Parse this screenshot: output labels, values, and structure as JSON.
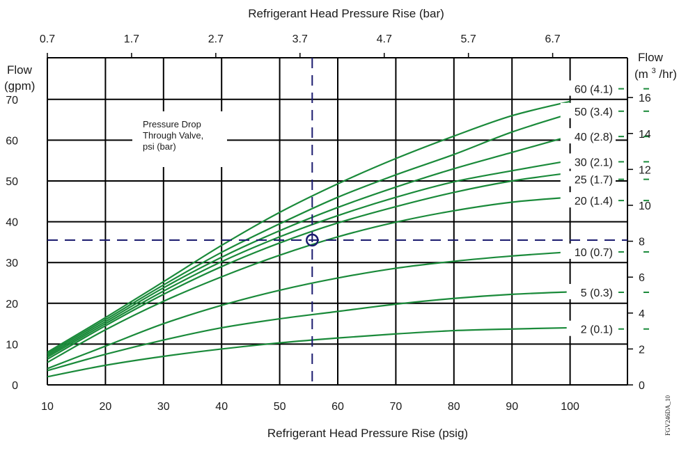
{
  "colors": {
    "curve": "#1a8a3a",
    "grid": "#000000",
    "marker": "#1a1a6e",
    "text": "#1a1a1a"
  },
  "chart_data": {
    "type": "line",
    "title": "",
    "xlabel": "Refrigerant Head Pressure Rise (psig)",
    "xlabel_top": "Refrigerant Head Pressure Rise (bar)",
    "ylabel_left": [
      "Flow",
      "(gpm)"
    ],
    "ylabel_right": [
      "Flow",
      "(m",
      "3",
      "/hr)"
    ],
    "xlim": [
      10,
      100
    ],
    "ylim": [
      0,
      72
    ],
    "x_ticks": [
      10,
      20,
      30,
      40,
      50,
      60,
      70,
      80,
      90,
      100
    ],
    "x_ticks_top": [
      "0.7",
      "1.7",
      "2.7",
      "3.7",
      "4.7",
      "5.7",
      "6.7"
    ],
    "x_ticks_top_pos": [
      10,
      24.5,
      39,
      53.5,
      68,
      82.5,
      97
    ],
    "y_ticks": [
      0,
      10,
      20,
      30,
      40,
      50,
      60,
      70
    ],
    "y_ticks_right": [
      0,
      2,
      4,
      6,
      8,
      10,
      12,
      14,
      16
    ],
    "gpm_per_m3hr": 4.403,
    "grid": true,
    "annotation": [
      "Pressure Drop",
      "Through Valve,",
      "psi (bar)"
    ],
    "figure_id": "FGV246DA_10",
    "example": {
      "x": 55.6,
      "y": 35.5
    },
    "series": [
      {
        "name": "60 (4.1)",
        "x": [
          10,
          20,
          30,
          40,
          50,
          60,
          70,
          80,
          90,
          100
        ],
        "y": [
          8,
          16.5,
          25.3,
          34.2,
          42.3,
          49.3,
          55.5,
          61,
          66,
          69.5
        ]
      },
      {
        "name": "50 (3.4)",
        "x": [
          10,
          20,
          30,
          40,
          50,
          60,
          70,
          80,
          90,
          100
        ],
        "y": [
          7.6,
          16,
          24.5,
          32.5,
          39.5,
          46,
          51.5,
          56.5,
          62,
          66.5
        ]
      },
      {
        "name": "40 (2.8)",
        "x": [
          10,
          20,
          30,
          40,
          50,
          60,
          70,
          80,
          90,
          100
        ],
        "y": [
          7.2,
          15.5,
          23.8,
          31.3,
          37.8,
          43.5,
          48.5,
          53,
          57,
          61
        ]
      },
      {
        "name": "30 (2.1)",
        "x": [
          10,
          20,
          30,
          40,
          50,
          60,
          70,
          80,
          90,
          100
        ],
        "y": [
          6.8,
          15,
          23,
          30.2,
          36.3,
          41.5,
          46,
          49.8,
          52.5,
          55
        ]
      },
      {
        "name": "25 (1.7)",
        "x": [
          10,
          20,
          30,
          40,
          50,
          60,
          70,
          80,
          90,
          100
        ],
        "y": [
          6.3,
          14.5,
          22.2,
          29,
          34.8,
          39.7,
          43.7,
          47.2,
          50,
          52
        ]
      },
      {
        "name": "20 (1.4)",
        "x": [
          10,
          20,
          30,
          40,
          50,
          60,
          70,
          80,
          90,
          100
        ],
        "y": [
          5.5,
          13.5,
          20.5,
          26.5,
          31.8,
          36.3,
          39.9,
          42.7,
          44.8,
          46
        ]
      },
      {
        "name": "10 (0.7)",
        "x": [
          10,
          20,
          30,
          40,
          50,
          60,
          70,
          80,
          90,
          100
        ],
        "y": [
          4,
          9.5,
          15,
          19.5,
          23.2,
          26.2,
          28.6,
          30.3,
          31.6,
          32.6
        ]
      },
      {
        "name": "5 (0.3)",
        "x": [
          10,
          20,
          30,
          40,
          50,
          60,
          70,
          80,
          90,
          100
        ],
        "y": [
          3.5,
          7.5,
          11,
          14,
          16.2,
          18,
          19.8,
          21.2,
          22.2,
          22.8
        ]
      },
      {
        "name": "2 (0.1)",
        "x": [
          10,
          20,
          30,
          40,
          50,
          60,
          70,
          80,
          90,
          100
        ],
        "y": [
          2,
          4.8,
          7,
          8.8,
          10.3,
          11.5,
          12.5,
          13.3,
          13.7,
          14
        ]
      }
    ]
  }
}
